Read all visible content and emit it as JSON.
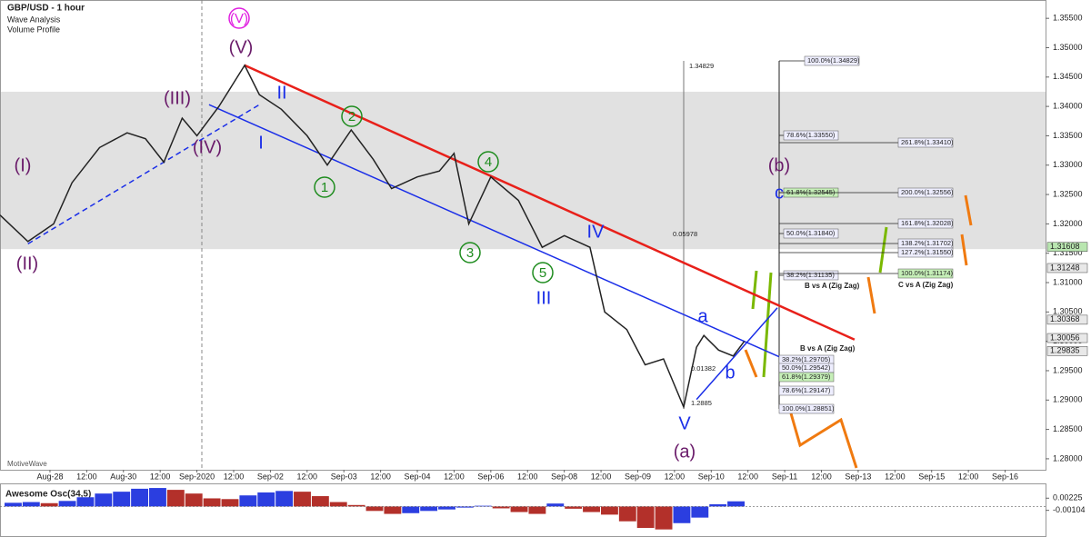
{
  "header": {
    "title": "GBP/USD - 1 hour",
    "studies": [
      "Wave Analysis",
      "Volume Profile"
    ],
    "watermark": "MotiveWave"
  },
  "chart_data": {
    "type": "line",
    "series": [
      {
        "name": "GBP/USD",
        "color": "#222222",
        "x": [
          -1.36,
          -0.6,
          0.1,
          0.6,
          1.35,
          2.1,
          2.6,
          3.1,
          3.6,
          4.0,
          4.6,
          5.3,
          5.7,
          6.3,
          7.0,
          7.55,
          8.2,
          8.8,
          9.3,
          10.0,
          10.6,
          11.0,
          11.4,
          12.0,
          12.75,
          13.4,
          14.0,
          14.7,
          15.1,
          15.7,
          16.2,
          16.7,
          17.25,
          17.6,
          17.8,
          18.2,
          18.6,
          18.9
        ],
        "values": [
          1.3215,
          1.317,
          1.32,
          1.327,
          1.333,
          1.3355,
          1.3345,
          1.3305,
          1.338,
          1.335,
          1.34,
          1.347,
          1.342,
          1.3395,
          1.335,
          1.33,
          1.336,
          1.331,
          1.326,
          1.328,
          1.329,
          1.332,
          1.32,
          1.328,
          1.324,
          1.316,
          1.318,
          1.316,
          1.305,
          1.302,
          1.296,
          1.297,
          1.2888,
          1.299,
          1.301,
          1.2985,
          1.2975,
          1.3
        ]
      }
    ],
    "xlim": [
      -1.36,
      27.1
    ],
    "ylim": [
      1.27813,
      1.35812
    ],
    "xticks": [
      {
        "value": 0,
        "label": "Aug-28"
      },
      {
        "value": 1,
        "label": "12:00"
      },
      {
        "value": 2,
        "label": "Aug-30"
      },
      {
        "value": 3,
        "label": "12:00"
      },
      {
        "value": 4,
        "label": "Sep-2020"
      },
      {
        "value": 5,
        "label": "12:00"
      },
      {
        "value": 6,
        "label": "Sep-02"
      },
      {
        "value": 7,
        "label": "12:00"
      },
      {
        "value": 8,
        "label": "Sep-03"
      },
      {
        "value": 9,
        "label": "12:00"
      },
      {
        "value": 10,
        "label": "Sep-04"
      },
      {
        "value": 11,
        "label": "12:00"
      },
      {
        "value": 12,
        "label": "Sep-06"
      },
      {
        "value": 13,
        "label": "12:00"
      },
      {
        "value": 14,
        "label": "Sep-08"
      },
      {
        "value": 15,
        "label": "12:00"
      },
      {
        "value": 16,
        "label": "Sep-09"
      },
      {
        "value": 17,
        "label": "12:00"
      },
      {
        "value": 18,
        "label": "Sep-10"
      },
      {
        "value": 19,
        "label": "12:00"
      },
      {
        "value": 20,
        "label": "Sep-11"
      },
      {
        "value": 21,
        "label": "12:00"
      },
      {
        "value": 22,
        "label": "Sep-13"
      },
      {
        "value": 23,
        "label": "12:00"
      },
      {
        "value": 24,
        "label": "Sep-15"
      },
      {
        "value": 25,
        "label": "12:00"
      },
      {
        "value": 26,
        "label": "Sep-16"
      }
    ],
    "yticks": [
      {
        "value": 1.355,
        "label": "1.35500"
      },
      {
        "value": 1.35,
        "label": "1.35000"
      },
      {
        "value": 1.345,
        "label": "1.34500"
      },
      {
        "value": 1.34,
        "label": "1.34000"
      },
      {
        "value": 1.335,
        "label": "1.33500"
      },
      {
        "value": 1.33,
        "label": "1.33000"
      },
      {
        "value": 1.325,
        "label": "1.32500"
      },
      {
        "value": 1.32,
        "label": "1.32000"
      },
      {
        "value": 1.315,
        "label": "1.31500"
      },
      {
        "value": 1.31,
        "label": "1.31000"
      },
      {
        "value": 1.305,
        "label": "1.30500"
      },
      {
        "value": 1.3,
        "label": "1.30000"
      },
      {
        "value": 1.295,
        "label": "1.29500"
      },
      {
        "value": 1.29,
        "label": "1.29000"
      },
      {
        "value": 1.285,
        "label": "1.28500"
      },
      {
        "value": 1.28,
        "label": "1.28000"
      }
    ],
    "price_labels": [
      1.31608,
      1.31248,
      1.30368,
      1.30056,
      1.29835
    ],
    "zone": [
      1.3157,
      1.3425
    ],
    "trendlines": [
      {
        "color": "#e8201a",
        "x": [
          5.3,
          21.9
        ],
        "y": [
          1.347,
          1.3003
        ]
      },
      {
        "color": "#1a2ee8",
        "x": [
          4.33,
          20.67
        ],
        "y": [
          1.3403,
          1.2951
        ]
      },
      {
        "color": "#1a2ee8",
        "x": [
          17.6,
          19.8
        ],
        "y": [
          1.2901,
          1.3057
        ]
      },
      {
        "color": "#1a2ee8",
        "dashed": true,
        "x": [
          -0.6,
          5.7
        ],
        "y": [
          1.3166,
          1.3403
        ]
      }
    ],
    "wave_labels": [
      "(V)",
      "(V)",
      "(III)",
      "(IV)",
      "(I)",
      "(II)",
      "II",
      "I",
      "2",
      "1",
      "4",
      "3",
      "5",
      "III",
      "IV",
      "a",
      "b",
      "V",
      "(a)",
      "(b)",
      "c"
    ],
    "fib_labels": [
      "100.0%(1.34829)",
      "78.6%(1.33550)",
      "61.8%(1.32545)",
      "50.0%(1.31840)",
      "38.2%(1.31135)",
      "261.8%(1.33410)",
      "200.0%(1.32556)",
      "161.8%(1.32028)",
      "138.2%(1.31702)",
      "127.2%(1.31550)",
      "100.0%(1.31174)",
      "38.2%(1.29705)",
      "50.0%(1.29542)",
      "61.8%(1.29379)",
      "78.6%(1.29147)",
      "100.0%(1.28851)"
    ],
    "notes": [
      "B vs A (Zig Zag)",
      "C vs A (Zig Zag)",
      "B vs A (Zig Zag)",
      "1.34829",
      "0.05978",
      "0.01382",
      "1.2885"
    ]
  },
  "oscillator": {
    "title": "Awesome Osc(34,5)",
    "ylim": [
      -0.008,
      0.006
    ],
    "yticks": [
      {
        "value": 0.00225,
        "label": "0.00225"
      },
      {
        "value": -0.00104,
        "label": "-0.00104"
      }
    ],
    "values": [
      0.001,
      0.0012,
      0.0009,
      0.0015,
      0.0025,
      0.0035,
      0.004,
      0.0048,
      0.005,
      0.0045,
      0.0035,
      0.0022,
      0.002,
      0.003,
      0.0038,
      0.0042,
      0.004,
      0.0028,
      0.0012,
      0.0004,
      -0.0012,
      -0.002,
      -0.0018,
      -0.0012,
      -0.0008,
      -0.0003,
      0.0002,
      -0.0005,
      -0.0015,
      -0.002,
      0.0008,
      -0.0006,
      -0.0015,
      -0.0022,
      -0.004,
      -0.0058,
      -0.0062,
      -0.0045,
      -0.003,
      0.0006,
      0.0014
    ]
  }
}
